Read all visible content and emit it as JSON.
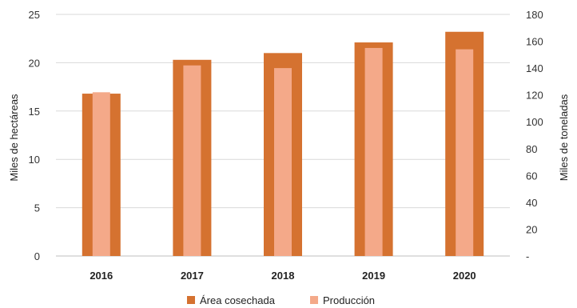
{
  "chart_data": {
    "type": "bar",
    "categories": [
      "2016",
      "2017",
      "2018",
      "2019",
      "2020"
    ],
    "series": [
      {
        "name": "Área cosechada",
        "axis": "left",
        "color": "#D57230",
        "values": [
          16.8,
          20.3,
          21.0,
          22.1,
          23.2
        ]
      },
      {
        "name": "Producción",
        "axis": "right",
        "color": "#F4A989",
        "values": [
          122,
          142,
          140,
          155,
          154
        ]
      }
    ],
    "ylabel": "Miles de hectáreas",
    "ylabel_right": "Miles de toneladas",
    "ylim": [
      0,
      25
    ],
    "ylim_right": [
      0,
      180
    ],
    "yticks": [
      "0",
      "5",
      "10",
      "15",
      "20",
      "25"
    ],
    "yticks_right": [
      "-",
      "20",
      "40",
      "60",
      "80",
      "100",
      "120",
      "140",
      "160",
      "180"
    ],
    "grid": true,
    "legend_position": "bottom"
  }
}
